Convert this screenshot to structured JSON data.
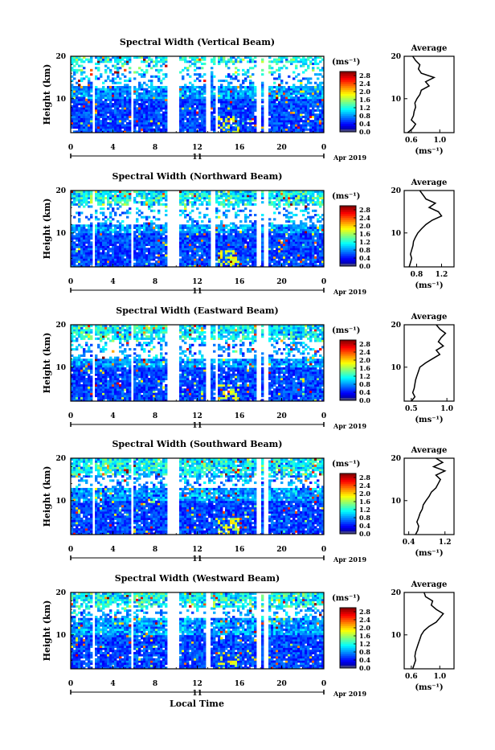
{
  "figure": {
    "xlabel": "Local Time",
    "ylabel": "Height (km)",
    "colorbar_unit": "(ms⁻¹)",
    "profile_title": "Average",
    "profile_xlabel": "(ms⁻¹)",
    "date_day": "11",
    "date_label": "Apr 2019"
  },
  "chart_data": [
    {
      "type": "heatmap",
      "title": "Spectral Width (Vertical Beam)",
      "x_ticks": [
        "0",
        "4",
        "8",
        "12",
        "16",
        "20",
        "0"
      ],
      "xlim": [
        0,
        24
      ],
      "y_ticks": [
        "10",
        "20"
      ],
      "ylim": [
        2,
        20
      ],
      "colorbar_ticks": [
        "0.0",
        "0.4",
        "0.8",
        "1.2",
        "1.6",
        "2.0",
        "2.4",
        "2.8"
      ],
      "colorbar_range": [
        0,
        3.0
      ],
      "data_gaps_hours": [
        [
          2.0,
          2.4
        ],
        [
          5.7,
          6.0
        ],
        [
          9.2,
          10.2
        ],
        [
          12.9,
          13.3
        ],
        [
          13.7,
          14.0
        ],
        [
          17.7,
          18.0
        ],
        [
          18.4,
          18.7
        ]
      ],
      "white_regions": [
        [
          0,
          24,
          13,
          20
        ]
      ],
      "profile": {
        "x_ticks": [
          "0.6",
          "1.0"
        ],
        "xlim": [
          0.5,
          1.2
        ],
        "height_km": [
          2,
          3,
          4,
          5,
          6,
          7,
          8,
          9,
          10,
          11,
          12,
          13,
          14,
          15,
          16,
          17,
          18,
          19,
          20
        ],
        "mean_width": [
          0.55,
          0.62,
          0.66,
          0.6,
          0.63,
          0.64,
          0.66,
          0.65,
          0.68,
          0.72,
          0.74,
          0.85,
          0.8,
          0.92,
          0.74,
          0.7,
          0.72,
          0.66,
          0.62
        ]
      }
    },
    {
      "type": "heatmap",
      "title": "Spectral Width (Northward Beam)",
      "x_ticks": [
        "0",
        "4",
        "8",
        "12",
        "16",
        "20",
        "0"
      ],
      "xlim": [
        0,
        24
      ],
      "y_ticks": [
        "10",
        "20"
      ],
      "ylim": [
        2,
        20
      ],
      "colorbar_ticks": [
        "0.0",
        "0.4",
        "0.8",
        "1.2",
        "1.6",
        "2.0",
        "2.4",
        "2.8"
      ],
      "colorbar_range": [
        0,
        3.0
      ],
      "data_gaps_hours": [
        [
          2.0,
          2.4
        ],
        [
          5.7,
          6.0
        ],
        [
          9.2,
          10.2
        ],
        [
          13.3,
          13.6
        ],
        [
          17.7,
          18.0
        ],
        [
          18.4,
          18.7
        ]
      ],
      "white_regions": [
        [
          0,
          24,
          12,
          18
        ]
      ],
      "profile": {
        "x_ticks": [
          "0.8",
          "1.2"
        ],
        "xlim": [
          0.6,
          1.4
        ],
        "height_km": [
          2,
          3,
          4,
          5,
          6,
          7,
          8,
          9,
          10,
          11,
          12,
          13,
          14,
          15,
          16,
          17,
          18,
          19,
          20
        ],
        "mean_width": [
          0.68,
          0.7,
          0.72,
          0.7,
          0.72,
          0.74,
          0.75,
          0.78,
          0.82,
          0.88,
          0.95,
          1.05,
          1.2,
          1.15,
          1.0,
          1.1,
          0.95,
          0.9,
          0.85
        ]
      }
    },
    {
      "type": "heatmap",
      "title": "Spectral Width (Eastward Beam)",
      "x_ticks": [
        "0",
        "4",
        "8",
        "12",
        "16",
        "20",
        "0"
      ],
      "xlim": [
        0,
        24
      ],
      "y_ticks": [
        "10",
        "20"
      ],
      "ylim": [
        2,
        20
      ],
      "colorbar_ticks": [
        "0.0",
        "0.4",
        "0.8",
        "1.2",
        "1.6",
        "2.0",
        "2.4",
        "2.8"
      ],
      "colorbar_range": [
        0,
        3.0
      ],
      "data_gaps_hours": [
        [
          2.0,
          2.4
        ],
        [
          5.7,
          6.0
        ],
        [
          9.2,
          10.2
        ],
        [
          12.9,
          13.3
        ],
        [
          13.7,
          14.0
        ],
        [
          17.7,
          18.0
        ],
        [
          18.4,
          18.7
        ]
      ],
      "white_regions": [
        [
          0,
          24,
          12,
          18
        ]
      ],
      "profile": {
        "x_ticks": [
          "0.5",
          "1.0"
        ],
        "xlim": [
          0.4,
          1.1
        ],
        "height_km": [
          2,
          3,
          4,
          5,
          6,
          7,
          8,
          9,
          10,
          11,
          12,
          13,
          14,
          15,
          16,
          17,
          18,
          19,
          20
        ],
        "mean_width": [
          0.5,
          0.55,
          0.52,
          0.54,
          0.55,
          0.56,
          0.58,
          0.6,
          0.62,
          0.7,
          0.8,
          0.9,
          0.85,
          0.95,
          0.88,
          0.92,
          0.98,
          0.9,
          0.85
        ]
      }
    },
    {
      "type": "heatmap",
      "title": "Spectral Width (Southward Beam)",
      "x_ticks": [
        "0",
        "4",
        "8",
        "12",
        "16",
        "20",
        "0"
      ],
      "xlim": [
        0,
        24
      ],
      "y_ticks": [
        "10",
        "20"
      ],
      "ylim": [
        2,
        20
      ],
      "colorbar_ticks": [
        "0.0",
        "0.4",
        "0.8",
        "1.2",
        "1.6",
        "2.0",
        "2.4",
        "2.8"
      ],
      "colorbar_range": [
        0,
        3.0
      ],
      "data_gaps_hours": [
        [
          2.0,
          2.4
        ],
        [
          5.7,
          6.0
        ],
        [
          9.2,
          10.2
        ],
        [
          17.7,
          18.0
        ],
        [
          18.4,
          18.7
        ]
      ],
      "white_regions": [
        [
          0,
          24,
          13,
          17
        ]
      ],
      "profile": {
        "x_ticks": [
          "0.4",
          "1.2"
        ],
        "xlim": [
          0.3,
          1.4
        ],
        "height_km": [
          2,
          3,
          4,
          5,
          6,
          7,
          8,
          9,
          10,
          11,
          12,
          13,
          14,
          15,
          16,
          17,
          18,
          19,
          20
        ],
        "mean_width": [
          0.55,
          0.6,
          0.62,
          0.58,
          0.62,
          0.65,
          0.7,
          0.72,
          0.78,
          0.85,
          0.9,
          1.0,
          1.05,
          1.1,
          1.0,
          1.2,
          0.95,
          1.15,
          1.0
        ]
      }
    },
    {
      "type": "heatmap",
      "title": "Spectral Width (Westward Beam)",
      "x_ticks": [
        "0",
        "4",
        "8",
        "12",
        "16",
        "20",
        "0"
      ],
      "xlim": [
        0,
        24
      ],
      "y_ticks": [
        "10",
        "20"
      ],
      "ylim": [
        2,
        20
      ],
      "colorbar_ticks": [
        "0.0",
        "0.4",
        "0.8",
        "1.2",
        "1.6",
        "2.0",
        "2.4",
        "2.8"
      ],
      "colorbar_range": [
        0,
        3.0
      ],
      "data_gaps_hours": [
        [
          2.0,
          2.4
        ],
        [
          5.7,
          6.0
        ],
        [
          9.2,
          10.2
        ],
        [
          12.9,
          13.3
        ],
        [
          17.7,
          18.0
        ],
        [
          18.4,
          18.7
        ]
      ],
      "white_regions": [
        [
          0,
          24,
          14,
          18
        ]
      ],
      "profile": {
        "x_ticks": [
          "0.6",
          "1.0"
        ],
        "xlim": [
          0.5,
          1.2
        ],
        "height_km": [
          2,
          3,
          4,
          5,
          6,
          7,
          8,
          9,
          10,
          11,
          12,
          13,
          14,
          15,
          16,
          17,
          18,
          19,
          20
        ],
        "mean_width": [
          0.62,
          0.64,
          0.66,
          0.65,
          0.66,
          0.68,
          0.7,
          0.72,
          0.74,
          0.78,
          0.85,
          0.95,
          1.0,
          1.05,
          0.95,
          0.88,
          0.9,
          0.8,
          0.78
        ]
      }
    }
  ]
}
